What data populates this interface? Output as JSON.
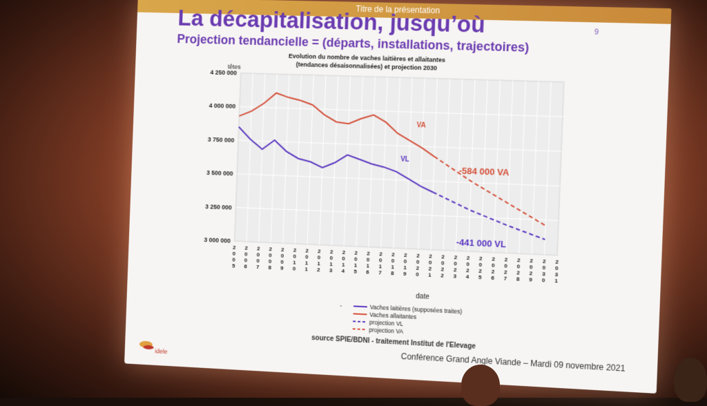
{
  "slide": {
    "header_title": "Titre de la présentation",
    "page_number": "9",
    "title": "La décapitalisation, jusqu’où",
    "subtitle": "Projection tendancielle = (départs, installations, trajectoires)",
    "source": "source SPIE/BDNI - traitement Institut de l'Elevage",
    "conference": "Conférence Grand Angle Viande – Mardi 09 novembre 2021",
    "logo_text": "idele"
  },
  "colors": {
    "title": "#6a3bb0",
    "va": "#d4503a",
    "vl": "#5a36c0",
    "header_bar": "#d9a74a"
  },
  "chart_data": {
    "type": "line",
    "title": "Evolution du nombre de vaches laitières et allaitantes",
    "subtitle": "(tendances désaisonnalisées) et projection 2030",
    "ylabel": "têtes",
    "xlabel": "date",
    "ylim": [
      3000000,
      4250000
    ],
    "y_ticks": [
      3000000,
      3250000,
      3500000,
      3750000,
      4000000,
      4250000
    ],
    "y_tick_labels": [
      "3 000 000",
      "3 250 000",
      "3 500 000",
      "3 750 000",
      "4 000 000",
      "4 250 000"
    ],
    "x_tick_labels": [
      "2005",
      "2006",
      "2007",
      "2008",
      "2009",
      "2010",
      "2011",
      "2012",
      "2013",
      "2014",
      "2015",
      "2016",
      "2017",
      "2018",
      "2019",
      "2020",
      "2021",
      "2022",
      "2023",
      "2024",
      "2025",
      "2026",
      "2027",
      "2028",
      "2029",
      "2030",
      "2031"
    ],
    "grid": true,
    "series": [
      {
        "name": "Vaches laitières (supposées traites)",
        "style": "solid",
        "color": "#5a36c0",
        "points": [
          [
            2005,
            3850000
          ],
          [
            2006,
            3760000
          ],
          [
            2007,
            3690000
          ],
          [
            2008,
            3760000
          ],
          [
            2009,
            3680000
          ],
          [
            2010,
            3630000
          ],
          [
            2011,
            3610000
          ],
          [
            2012,
            3570000
          ],
          [
            2013,
            3610000
          ],
          [
            2014,
            3670000
          ],
          [
            2015,
            3640000
          ],
          [
            2016,
            3610000
          ],
          [
            2017,
            3590000
          ],
          [
            2018,
            3560000
          ],
          [
            2019,
            3510000
          ],
          [
            2020,
            3460000
          ],
          [
            2021,
            3420000
          ]
        ]
      },
      {
        "name": "Vaches allaitantes",
        "style": "solid",
        "color": "#d4503a",
        "points": [
          [
            2005,
            3930000
          ],
          [
            2006,
            3970000
          ],
          [
            2007,
            4030000
          ],
          [
            2008,
            4110000
          ],
          [
            2009,
            4080000
          ],
          [
            2010,
            4060000
          ],
          [
            2011,
            4030000
          ],
          [
            2012,
            3960000
          ],
          [
            2013,
            3910000
          ],
          [
            2014,
            3900000
          ],
          [
            2015,
            3940000
          ],
          [
            2016,
            3970000
          ],
          [
            2017,
            3920000
          ],
          [
            2018,
            3840000
          ],
          [
            2019,
            3790000
          ],
          [
            2020,
            3740000
          ],
          [
            2021,
            3680000
          ]
        ]
      },
      {
        "name": "projection VL",
        "style": "dashed",
        "color": "#5a36c0",
        "points": [
          [
            2021,
            3420000
          ],
          [
            2024,
            3300000
          ],
          [
            2027,
            3200000
          ],
          [
            2030,
            3110000
          ]
        ]
      },
      {
        "name": "projection VA",
        "style": "dashed",
        "color": "#d4503a",
        "points": [
          [
            2021,
            3680000
          ],
          [
            2024,
            3510000
          ],
          [
            2027,
            3360000
          ],
          [
            2030,
            3210000
          ]
        ]
      }
    ],
    "annotations": [
      {
        "text": "VA",
        "x": 2019.5,
        "y": 3890000,
        "color": "#d4503a"
      },
      {
        "text": "VL",
        "x": 2018.3,
        "y": 3640000,
        "color": "#5a36c0"
      },
      {
        "text": "-584 000 VA",
        "x": 2023,
        "y": 3560000,
        "color": "#d4503a"
      },
      {
        "text": "-441 000 VL",
        "x": 2023,
        "y": 3040000,
        "color": "#5a36c0"
      }
    ],
    "legend_position": "bottom",
    "legend_dash": "-"
  }
}
